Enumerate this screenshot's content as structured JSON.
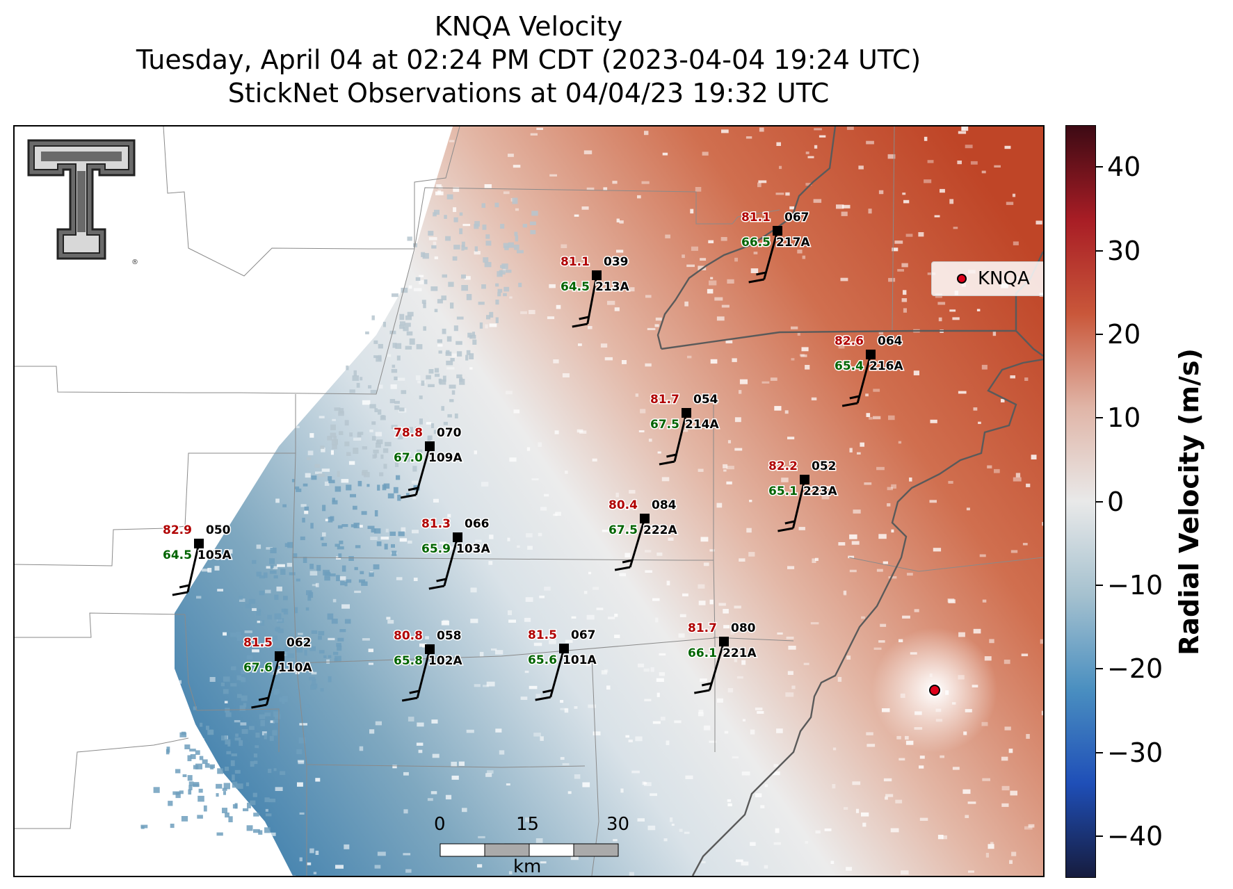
{
  "title": {
    "line1": "KNQA Velocity",
    "line2": "Tuesday, April 04 at 02:24 PM CDT (2023-04-04 19:24 UTC)",
    "line3": "StickNet Observations at 04/04/23 19:32 UTC"
  },
  "legend": {
    "label": "KNQA",
    "marker_color": "#e0001a"
  },
  "colorbar": {
    "title": "Radial Velocity (m/s)",
    "ticks": [
      "40",
      "30",
      "20",
      "10",
      "0",
      "−10",
      "−20",
      "−30",
      "−40"
    ],
    "range": [
      -45,
      45
    ],
    "colors": [
      "#161c3e",
      "#1f4fb8",
      "#4a8fc0",
      "#a5c1cf",
      "#e9e9e9",
      "#e0b5a7",
      "#c9573a",
      "#a81d25",
      "#3d0a14"
    ]
  },
  "scale_bar": {
    "labels": [
      "0",
      "15",
      "30"
    ],
    "unit": "km"
  },
  "logo": {
    "text": "TT"
  },
  "stations": [
    {
      "id": "213A",
      "temp": "81.1",
      "dew": "64.5",
      "dir": "039"
    },
    {
      "id": "217A",
      "temp": "81.1",
      "dew": "66.5",
      "dir": "067"
    },
    {
      "id": "216A",
      "temp": "82.6",
      "dew": "65.4",
      "dir": "064"
    },
    {
      "id": "214A",
      "temp": "81.7",
      "dew": "67.5",
      "dir": "054"
    },
    {
      "id": "109A",
      "temp": "78.8",
      "dew": "67.0",
      "dir": "070"
    },
    {
      "id": "223A",
      "temp": "82.2",
      "dew": "65.1",
      "dir": "052"
    },
    {
      "id": "222A",
      "temp": "80.4",
      "dew": "67.5",
      "dir": "084"
    },
    {
      "id": "103A",
      "temp": "81.3",
      "dew": "65.9",
      "dir": "066"
    },
    {
      "id": "105A",
      "temp": "82.9",
      "dew": "64.5",
      "dir": "050"
    },
    {
      "id": "110A",
      "temp": "81.5",
      "dew": "67.6",
      "dir": "062"
    },
    {
      "id": "102A",
      "temp": "80.8",
      "dew": "65.8",
      "dir": "058"
    },
    {
      "id": "101A",
      "temp": "81.5",
      "dew": "65.6",
      "dir": "067"
    },
    {
      "id": "221A",
      "temp": "81.7",
      "dew": "66.1",
      "dir": "080"
    }
  ]
}
